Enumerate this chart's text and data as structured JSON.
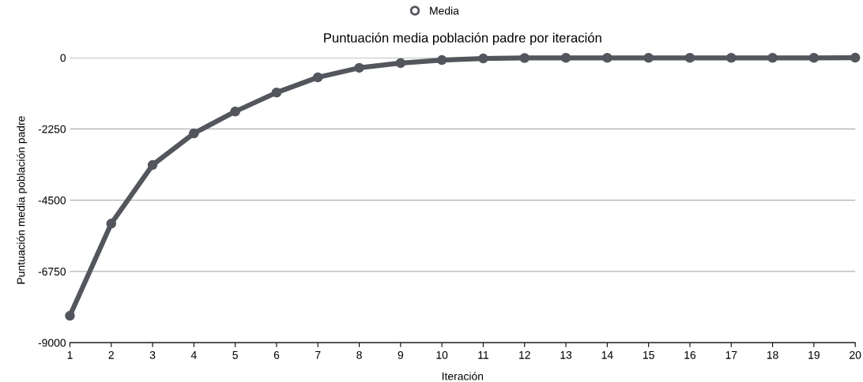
{
  "chart_data": {
    "type": "line",
    "title": "Puntuación media población padre por iteración",
    "xlabel": "Iteración",
    "ylabel": "Puntuación media población padre",
    "x": [
      1,
      2,
      3,
      4,
      5,
      6,
      7,
      8,
      9,
      10,
      11,
      12,
      13,
      14,
      15,
      16,
      17,
      18,
      19,
      20
    ],
    "series": [
      {
        "name": "Media",
        "color": "#54565d",
        "values": [
          -8150,
          -5240,
          -3390,
          -2390,
          -1700,
          -1100,
          -620,
          -320,
          -170,
          -75,
          -25,
          -10,
          -5,
          -5,
          -5,
          -5,
          -5,
          -5,
          -5,
          0
        ]
      }
    ],
    "xlim": [
      1,
      20
    ],
    "xticks": [
      1,
      2,
      3,
      4,
      5,
      6,
      7,
      8,
      9,
      10,
      11,
      12,
      13,
      14,
      15,
      16,
      17,
      18,
      19,
      20
    ],
    "ylim": [
      -9000,
      0
    ],
    "yticks": [
      -9000,
      -6750,
      -4500,
      -2250,
      0
    ],
    "grid": "y",
    "legend": "top",
    "marker": "circle",
    "line_style": "solid"
  }
}
